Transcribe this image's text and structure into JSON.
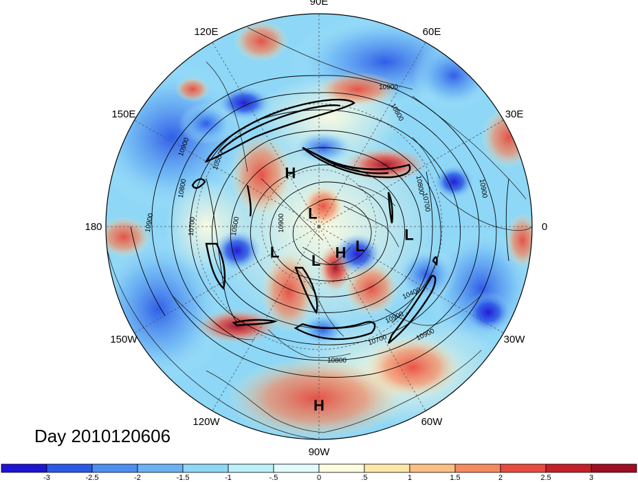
{
  "title": "Day 2010120606",
  "longitude_labels": [
    "90E",
    "60E",
    "30E",
    "0",
    "30W",
    "60W",
    "90W",
    "120W",
    "150W",
    "180",
    "150E",
    "120E"
  ],
  "pressure_systems": [
    {
      "type": "H",
      "lon": 118,
      "lat": 58
    },
    {
      "type": "L",
      "lon": 115,
      "lat": 82
    },
    {
      "type": "L",
      "lon": -150,
      "lat": 63
    },
    {
      "type": "L",
      "lon": -95,
      "lat": 72
    },
    {
      "type": "H",
      "lon": -50,
      "lat": 72
    },
    {
      "type": "L",
      "lon": -25,
      "lat": 66
    },
    {
      "type": "L",
      "lon": -5,
      "lat": 44
    },
    {
      "type": "H",
      "lon": -90,
      "lat": 10
    }
  ],
  "contour_labels": [
    "10900",
    "10800",
    "10500",
    "10900",
    "10800",
    "10700",
    "10900",
    "10500",
    "10800",
    "10700",
    "10900",
    "10900",
    "10900",
    "10400",
    "10700",
    "10900",
    "10800"
  ],
  "colorbar": {
    "tick_labels": [
      "-3",
      "-2.5",
      "-2",
      "-1.5",
      "-1",
      "-.5",
      "0",
      ".5",
      "1",
      "1.5",
      "2",
      "2.5",
      "3"
    ],
    "colors": [
      "#1f13d4",
      "#2b58e6",
      "#4d8ff0",
      "#6bb2f4",
      "#8ed7f7",
      "#baf1f8",
      "#e3fbfc",
      "#fffce0",
      "#fde8a9",
      "#fbbf83",
      "#f68a5f",
      "#e94a3e",
      "#c51f2a",
      "#a10d22"
    ]
  },
  "colors": {
    "land_line": "#222222",
    "contour": "#000000"
  }
}
